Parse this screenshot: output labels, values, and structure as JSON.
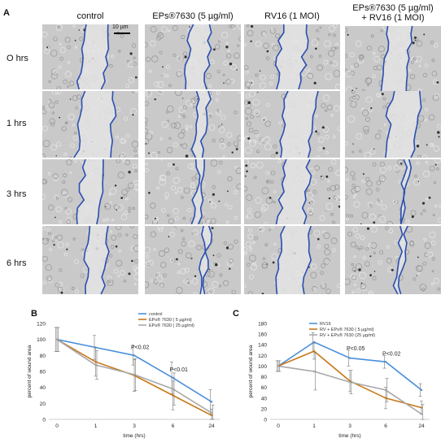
{
  "figure": {
    "panel_a_letter": "A",
    "panel_b_letter": "B",
    "panel_c_letter": "C",
    "columns": [
      "control",
      "EPs®7630 (5 µg/ml)",
      "RV16 (1 MOI)",
      "EPs®7630 (5 µg/ml)",
      "+ RV16 (1 MOI)"
    ],
    "rows": [
      "O hrs",
      "1 hrs",
      "3 hrs",
      "6 hrs"
    ],
    "scale_bar": "10 µm",
    "colors": {
      "wound_edge": "#2a4fb0",
      "tile_bg": "#c9c9c9"
    }
  },
  "chart_data": [
    {
      "type": "line",
      "panel": "B",
      "categories": [
        "0",
        "1",
        "3",
        "6",
        "24"
      ],
      "xlabel": "time (hrs)",
      "ylabel": "percent of wound area",
      "ylim": [
        0,
        120
      ],
      "yticks": [
        0,
        20,
        40,
        60,
        80,
        100,
        120
      ],
      "legend_position": "top-right",
      "series": [
        {
          "name": "control",
          "color": "#4a8fdc",
          "values": [
            100,
            90,
            80,
            52,
            22
          ],
          "errors": [
            15,
            15,
            12,
            20,
            15
          ]
        },
        {
          "name": "EPs® 7630 ( 5 µg/ml)",
          "color": "#c87818",
          "values": [
            100,
            72,
            55,
            30,
            5
          ],
          "errors": [
            15,
            18,
            20,
            18,
            8
          ]
        },
        {
          "name": "EPs® 7630 ( 25 µg/ml)",
          "color": "#a8a8a8",
          "values": [
            100,
            68,
            56,
            38,
            8
          ],
          "errors": [
            15,
            18,
            20,
            20,
            10
          ]
        }
      ],
      "annotations": [
        {
          "text": "P<0.02",
          "x": "3",
          "y": 88
        },
        {
          "text": "P<0.01",
          "x": "6",
          "y": 60
        }
      ]
    },
    {
      "type": "line",
      "panel": "C",
      "categories": [
        "0",
        "1",
        "3",
        "6",
        "24"
      ],
      "xlabel": "time (hrs)",
      "ylabel": "percent of wound area",
      "ylim": [
        0,
        180
      ],
      "yticks": [
        0,
        20,
        40,
        60,
        80,
        100,
        120,
        140,
        160,
        180
      ],
      "legend_position": "top-right",
      "series": [
        {
          "name": "RV16",
          "color": "#4a8fdc",
          "values": [
            100,
            145,
            115,
            108,
            55
          ],
          "errors": [
            10,
            18,
            15,
            12,
            12
          ]
        },
        {
          "name": "RV + EPs® 7630 ( 5 µg/ml)",
          "color": "#c87818",
          "values": [
            100,
            128,
            72,
            40,
            22
          ],
          "errors": [
            10,
            15,
            20,
            20,
            12
          ]
        },
        {
          "name": "RV + EPs® 7630 (25 µg/ml)",
          "color": "#a8a8a8",
          "values": [
            100,
            90,
            70,
            55,
            10
          ],
          "errors": [
            10,
            35,
            22,
            22,
            18
          ]
        }
      ],
      "annotations": [
        {
          "text": "P<0.05",
          "x": "3",
          "y": 130
        },
        {
          "text": "P<0.02",
          "x": "6",
          "y": 120
        }
      ]
    }
  ]
}
